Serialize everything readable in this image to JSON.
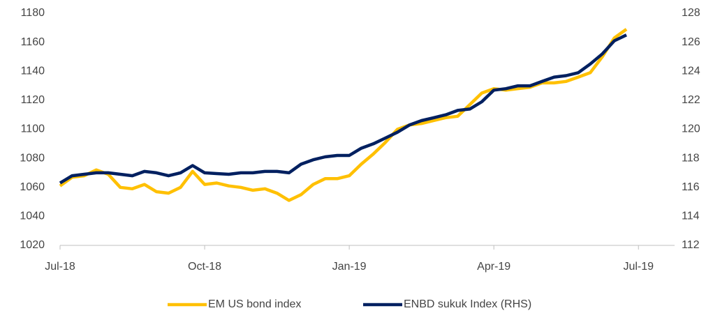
{
  "chart_data": {
    "type": "line",
    "x": [
      0,
      0.25,
      0.5,
      0.75,
      1,
      1.25,
      1.5,
      1.75,
      2,
      2.25,
      2.5,
      2.75,
      3,
      3.25,
      3.5,
      3.75,
      4,
      4.25,
      4.5,
      4.75,
      5,
      5.25,
      5.5,
      5.75,
      6,
      6.25,
      6.5,
      6.75,
      7,
      7.25,
      7.5,
      7.75,
      8,
      8.25,
      8.5,
      8.75,
      9,
      9.25,
      9.5,
      9.75,
      10,
      10.25,
      10.5,
      10.75,
      11,
      11.25,
      11.5,
      11.75
    ],
    "xlim": [
      0,
      12.75
    ],
    "xticks": [
      {
        "value": 0,
        "label": "Jul-18"
      },
      {
        "value": 3,
        "label": "Oct-18"
      },
      {
        "value": 6,
        "label": "Jan-19"
      },
      {
        "value": 9,
        "label": "Apr-19"
      },
      {
        "value": 12,
        "label": "Jul-19"
      }
    ],
    "ylim": [
      1020,
      1180
    ],
    "yticks": [
      1020,
      1040,
      1060,
      1080,
      1100,
      1120,
      1140,
      1160,
      1180
    ],
    "y2lim": [
      112,
      128
    ],
    "y2ticks": [
      112,
      114,
      116,
      118,
      120,
      122,
      124,
      126,
      128
    ],
    "grid": false,
    "legend": "bottom",
    "series": [
      {
        "name": "EM US bond index",
        "color": "#FFC000",
        "values": [
          1061,
          1067,
          1068,
          1072,
          1069,
          1060,
          1059,
          1062,
          1057,
          1056,
          1060,
          1071,
          1062,
          1063,
          1061,
          1060,
          1058,
          1059,
          1056,
          1051,
          1055,
          1062,
          1066,
          1066,
          1068,
          1076,
          1083,
          1091,
          1100,
          1103,
          1104,
          1106,
          1108,
          1109,
          1117,
          1125,
          1128,
          1127,
          1128,
          1129,
          1132,
          1132,
          1133,
          1136,
          1139,
          1150,
          1163,
          1169
        ]
      },
      {
        "name": "ENBD sukuk Index (RHS)",
        "color": "#002060",
        "axis": "y2",
        "values": [
          116.3,
          116.8,
          116.9,
          117.0,
          117.0,
          116.9,
          116.8,
          117.1,
          117.0,
          116.8,
          117.0,
          117.5,
          117.0,
          116.95,
          116.9,
          117.0,
          117.0,
          117.1,
          117.1,
          117.0,
          117.6,
          117.9,
          118.1,
          118.2,
          118.2,
          118.7,
          119.0,
          119.4,
          119.8,
          120.3,
          120.6,
          120.8,
          121.0,
          121.3,
          121.4,
          121.9,
          122.7,
          122.8,
          123.0,
          123.0,
          123.3,
          123.6,
          123.7,
          123.9,
          124.5,
          125.2,
          126.1,
          126.5
        ]
      }
    ]
  }
}
